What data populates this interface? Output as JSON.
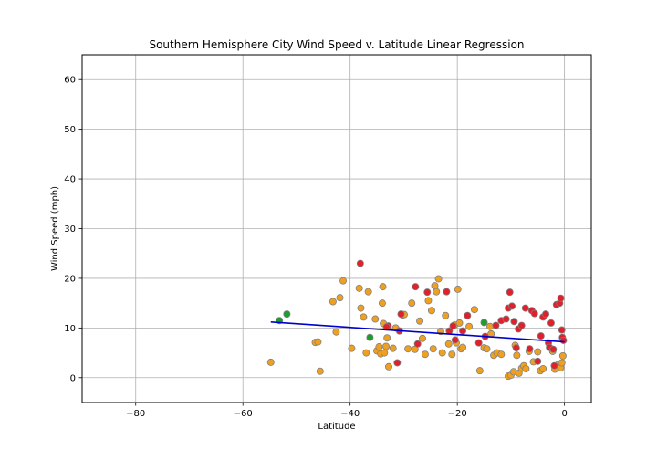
{
  "chart_data": {
    "type": "scatter",
    "title": "Southern Hemisphere City Wind Speed v. Latitude Linear Regression",
    "xlabel": "Latitude",
    "ylabel": "Wind Speed (mph)",
    "xlim": [
      -90,
      5
    ],
    "ylim": [
      -5,
      65
    ],
    "xticks": [
      -80,
      -60,
      -40,
      -20,
      0
    ],
    "yticks": [
      0,
      10,
      20,
      30,
      40,
      50,
      60
    ],
    "xtick_labels": [
      "−80",
      "−60",
      "−40",
      "−20",
      "0"
    ],
    "ytick_labels": [
      "0",
      "10",
      "20",
      "30",
      "40",
      "50",
      "60"
    ],
    "grid": true,
    "regression_line": {
      "x": [
        -54.8,
        0
      ],
      "y": [
        11.2,
        7.2
      ],
      "color": "#0000cc"
    },
    "series": [
      {
        "color": "#f0a020",
        "points": [
          [
            -54.8,
            3.1
          ],
          [
            -46.5,
            7.1
          ],
          [
            -46.0,
            7.2
          ],
          [
            -45.6,
            1.3
          ],
          [
            -43.2,
            15.3
          ],
          [
            -42.6,
            9.2
          ],
          [
            -41.9,
            16.1
          ],
          [
            -41.3,
            19.5
          ],
          [
            -39.7,
            5.9
          ],
          [
            -38.3,
            18.0
          ],
          [
            -38.0,
            14.0
          ],
          [
            -37.5,
            12.2
          ],
          [
            -37.0,
            5.0
          ],
          [
            -36.6,
            17.3
          ],
          [
            -35.3,
            11.8
          ],
          [
            -35.0,
            5.4
          ],
          [
            -34.6,
            6.2
          ],
          [
            -34.3,
            4.8
          ],
          [
            -34.0,
            15.0
          ],
          [
            -33.9,
            18.3
          ],
          [
            -33.8,
            10.9
          ],
          [
            -33.6,
            5.0
          ],
          [
            -33.3,
            6.3
          ],
          [
            -33.1,
            8.0
          ],
          [
            -32.8,
            2.2
          ],
          [
            -32.0,
            5.9
          ],
          [
            -31.5,
            10.0
          ],
          [
            -30.2,
            12.6
          ],
          [
            -29.9,
            12.7
          ],
          [
            -29.2,
            5.8
          ],
          [
            -28.5,
            15.0
          ],
          [
            -27.9,
            5.7
          ],
          [
            -27.0,
            11.4
          ],
          [
            -26.0,
            4.7
          ],
          [
            -25.4,
            15.5
          ],
          [
            -24.8,
            13.5
          ],
          [
            -24.5,
            5.8
          ],
          [
            -24.2,
            18.5
          ],
          [
            -23.9,
            17.3
          ],
          [
            -23.5,
            19.9
          ],
          [
            -23.1,
            9.3
          ],
          [
            -22.8,
            5.0
          ],
          [
            -22.2,
            12.5
          ],
          [
            -21.6,
            6.8
          ],
          [
            -21.0,
            4.7
          ],
          [
            -20.5,
            10.6
          ],
          [
            -20.2,
            7.0
          ],
          [
            -19.9,
            17.8
          ],
          [
            -19.6,
            11.0
          ],
          [
            -19.3,
            5.8
          ],
          [
            -19.0,
            6.1
          ],
          [
            -17.8,
            10.3
          ],
          [
            -16.8,
            13.7
          ],
          [
            -15.8,
            1.4
          ],
          [
            -15.0,
            6.0
          ],
          [
            -14.5,
            5.8
          ],
          [
            -13.9,
            10.3
          ],
          [
            -13.2,
            4.5
          ],
          [
            -12.6,
            5.0
          ],
          [
            -11.8,
            4.7
          ],
          [
            -10.5,
            0.3
          ],
          [
            -10.0,
            0.5
          ],
          [
            -9.5,
            1.2
          ],
          [
            -9.2,
            6.5
          ],
          [
            -8.9,
            4.5
          ],
          [
            -8.5,
            0.9
          ],
          [
            -8.0,
            1.9
          ],
          [
            -7.6,
            2.4
          ],
          [
            -7.2,
            1.8
          ],
          [
            -6.6,
            5.3
          ],
          [
            -5.8,
            3.2
          ],
          [
            -5.0,
            5.2
          ],
          [
            -4.5,
            1.4
          ],
          [
            -4.0,
            1.8
          ],
          [
            -2.2,
            5.3
          ],
          [
            -1.8,
            1.7
          ],
          [
            -1.2,
            2.6
          ],
          [
            -0.7,
            2.0
          ],
          [
            -0.5,
            3.0
          ],
          [
            -0.3,
            4.4
          ],
          [
            -13.7,
            8.8
          ],
          [
            -26.5,
            7.9
          ]
        ]
      },
      {
        "color": "#e0202a",
        "points": [
          [
            -38.1,
            23.0
          ],
          [
            -32.9,
            10.4
          ],
          [
            -31.2,
            3.0
          ],
          [
            -30.8,
            9.4
          ],
          [
            -30.5,
            12.8
          ],
          [
            -27.8,
            18.3
          ],
          [
            -27.4,
            6.8
          ],
          [
            -25.6,
            17.2
          ],
          [
            -22.0,
            17.3
          ],
          [
            -21.5,
            9.4
          ],
          [
            -20.8,
            10.4
          ],
          [
            -20.4,
            7.6
          ],
          [
            -19.0,
            9.4
          ],
          [
            -18.1,
            12.5
          ],
          [
            -16.0,
            7.0
          ],
          [
            -14.8,
            8.3
          ],
          [
            -12.8,
            10.5
          ],
          [
            -11.8,
            11.5
          ],
          [
            -10.9,
            11.8
          ],
          [
            -10.5,
            14.0
          ],
          [
            -10.2,
            17.2
          ],
          [
            -9.8,
            14.4
          ],
          [
            -9.4,
            11.3
          ],
          [
            -9.0,
            6.0
          ],
          [
            -8.6,
            9.8
          ],
          [
            -8.0,
            10.5
          ],
          [
            -7.3,
            14.0
          ],
          [
            -6.5,
            5.8
          ],
          [
            -6.1,
            13.5
          ],
          [
            -5.6,
            12.9
          ],
          [
            -5.0,
            3.3
          ],
          [
            -4.4,
            8.4
          ],
          [
            -4.0,
            12.2
          ],
          [
            -3.5,
            12.8
          ],
          [
            -3.0,
            7.0
          ],
          [
            -2.8,
            6.1
          ],
          [
            -2.5,
            11.0
          ],
          [
            -2.1,
            5.7
          ],
          [
            -1.5,
            14.7
          ],
          [
            -0.9,
            15.0
          ],
          [
            -0.7,
            16.0
          ],
          [
            -0.5,
            9.6
          ],
          [
            -0.4,
            8.1
          ],
          [
            -0.2,
            7.5
          ],
          [
            -1.9,
            2.4
          ],
          [
            -33.2,
            10.2
          ]
        ]
      },
      {
        "color": "#1aa02a",
        "points": [
          [
            -53.2,
            11.5
          ],
          [
            -51.8,
            12.8
          ],
          [
            -36.3,
            8.1
          ],
          [
            -15.0,
            11.1
          ]
        ]
      }
    ],
    "marker_edge_color": "#808080"
  }
}
